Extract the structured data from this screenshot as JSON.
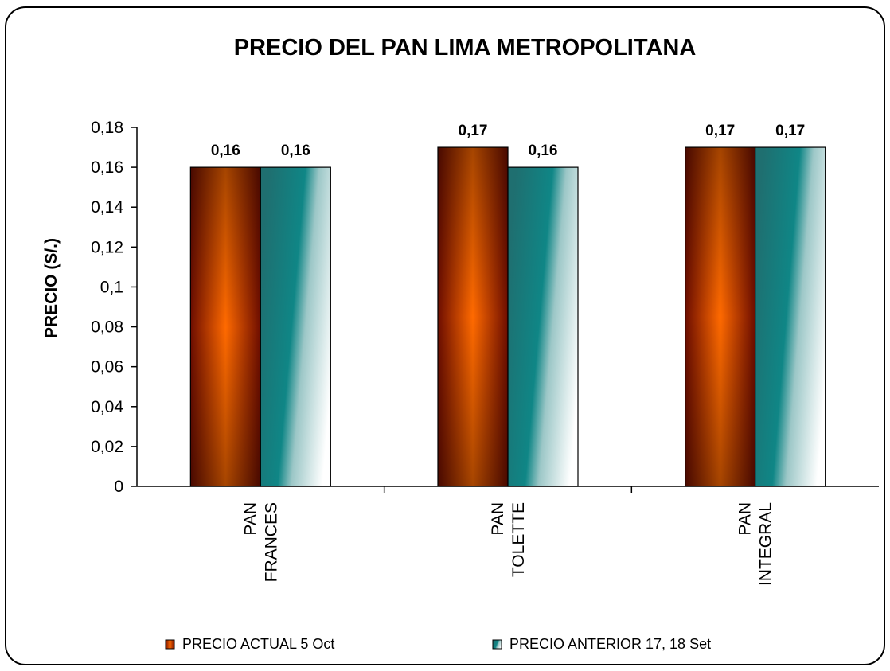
{
  "chart_data": {
    "type": "bar",
    "title": "PRECIO DEL PAN LIMA METROPOLITANA",
    "ylabel": "PRECIO (S/.)",
    "xlabel": "",
    "ylim": [
      0,
      0.18
    ],
    "yticks": [
      "0",
      "0,02",
      "0,04",
      "0,06",
      "0,08",
      "0,1",
      "0,12",
      "0,14",
      "0,16",
      "0,18"
    ],
    "categories": [
      [
        "PAN",
        "FRANCES"
      ],
      [
        "PAN",
        "TOLETTE"
      ],
      [
        "PAN",
        "INTEGRAL"
      ]
    ],
    "series": [
      {
        "name": "PRECIO ACTUAL 5 Oct",
        "values": [
          0.16,
          0.17,
          0.17
        ],
        "labels": [
          "0,16",
          "0,17",
          "0,17"
        ]
      },
      {
        "name": "PRECIO ANTERIOR 17, 18 Set",
        "values": [
          0.16,
          0.16,
          0.17
        ],
        "labels": [
          "0,16",
          "0,16",
          "0,17"
        ]
      }
    ],
    "legend_position": "bottom",
    "grid": false,
    "colors": {
      "actual_edge": "#7a1000",
      "actual_center": "#ff6a00",
      "anterior_teal": "#007a7a",
      "anterior_light": "#ffffff"
    }
  }
}
